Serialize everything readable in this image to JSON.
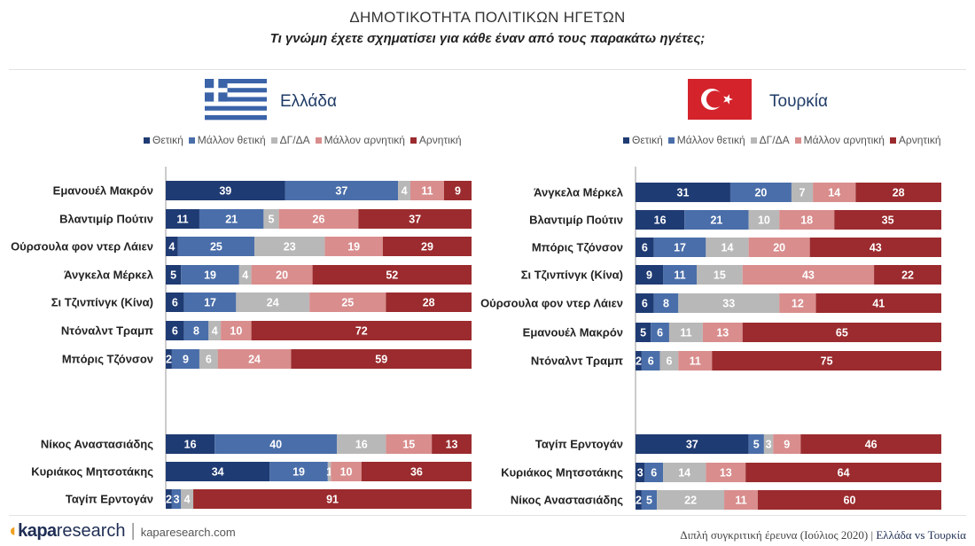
{
  "title": "ΔΗΜΟΤΙΚΟΤΗΤΑ ΠΟΛΙΤΙΚΩΝ ΗΓΕΤΩΝ",
  "subtitle": "Τι γνώμη έχετε σχηματίσει για κάθε έναν από τους παρακάτω ηγέτες;",
  "legend": [
    "Θετική",
    "Μάλλον θετική",
    "ΔΓ/ΔΑ",
    "Μάλλον αρνητική",
    "Αρνητική"
  ],
  "colors": [
    "#1f3b73",
    "#4a6ea9",
    "#b8b8b8",
    "#d98d8d",
    "#9b2b2e"
  ],
  "footer": {
    "brand": "kapa",
    "brand2": "research",
    "separator": "|",
    "site": "kaparesearch.com",
    "note": "Διπλή συγκριτική έρευνα (Ιούλιος 2020) |",
    "note_strong": "Ελλάδα vs Τουρκία"
  },
  "chart_data": [
    {
      "type": "bar",
      "stacked": true,
      "orientation": "horizontal",
      "title": "Ελλάδα",
      "flag": "greece-flag",
      "legend_position": "top",
      "series_names": [
        "Θετική",
        "Μάλλον θετική",
        "ΔΓ/ΔΑ",
        "Μάλλον αρνητική",
        "Αρνητική"
      ],
      "groups": [
        {
          "categories": [
            "Εμανουέλ Μακρόν",
            "Βλαντιμίρ Πούτιν",
            "Ούρσουλα φον ντερ Λάιεν",
            "Άνγκελα Μέρκελ",
            "Σι Τζινπίνγκ (Κίνα)",
            "Ντόναλντ Τραμπ",
            "Μπόρις Τζόνσον"
          ],
          "values": [
            [
              39,
              37,
              4,
              11,
              9
            ],
            [
              11,
              21,
              5,
              26,
              37
            ],
            [
              4,
              25,
              23,
              19,
              29
            ],
            [
              5,
              19,
              4,
              20,
              52
            ],
            [
              6,
              17,
              24,
              25,
              28
            ],
            [
              6,
              8,
              4,
              10,
              72
            ],
            [
              2,
              9,
              6,
              24,
              59
            ]
          ]
        },
        {
          "categories": [
            "Νίκος Αναστασιάδης",
            "Κυριάκος Μητσοτάκης",
            "Ταγίπ Ερντογάν"
          ],
          "values": [
            [
              16,
              40,
              16,
              15,
              13
            ],
            [
              34,
              19,
              1,
              10,
              36
            ],
            [
              2,
              3,
              4,
              0,
              91
            ]
          ]
        }
      ]
    },
    {
      "type": "bar",
      "stacked": true,
      "orientation": "horizontal",
      "title": "Τουρκία",
      "flag": "turkey-flag",
      "legend_position": "top",
      "series_names": [
        "Θετική",
        "Μάλλον θετική",
        "ΔΓ/ΔΑ",
        "Μάλλον αρνητική",
        "Αρνητική"
      ],
      "groups": [
        {
          "categories": [
            "Άνγκελα Μέρκελ",
            "Βλαντιμίρ Πούτιν",
            "Μπόρις Τζόνσον",
            "Σι Τζινπίνγκ (Κίνα)",
            "Ούρσουλα φον ντερ Λάιεν",
            "Εμανουέλ Μακρόν",
            "Ντόναλντ Τραμπ"
          ],
          "values": [
            [
              31,
              20,
              7,
              14,
              28
            ],
            [
              16,
              21,
              10,
              18,
              35
            ],
            [
              6,
              17,
              14,
              20,
              43
            ],
            [
              9,
              11,
              15,
              43,
              22
            ],
            [
              6,
              8,
              33,
              12,
              41
            ],
            [
              5,
              6,
              11,
              13,
              65
            ],
            [
              2,
              6,
              6,
              11,
              75
            ]
          ]
        },
        {
          "categories": [
            "Ταγίπ Ερντογάν",
            "Κυριάκος Μητσοτάκης",
            "Νίκος Αναστασιάδης"
          ],
          "values": [
            [
              37,
              5,
              3,
              9,
              46
            ],
            [
              3,
              6,
              14,
              13,
              64
            ],
            [
              2,
              5,
              22,
              11,
              60
            ]
          ]
        }
      ]
    }
  ]
}
